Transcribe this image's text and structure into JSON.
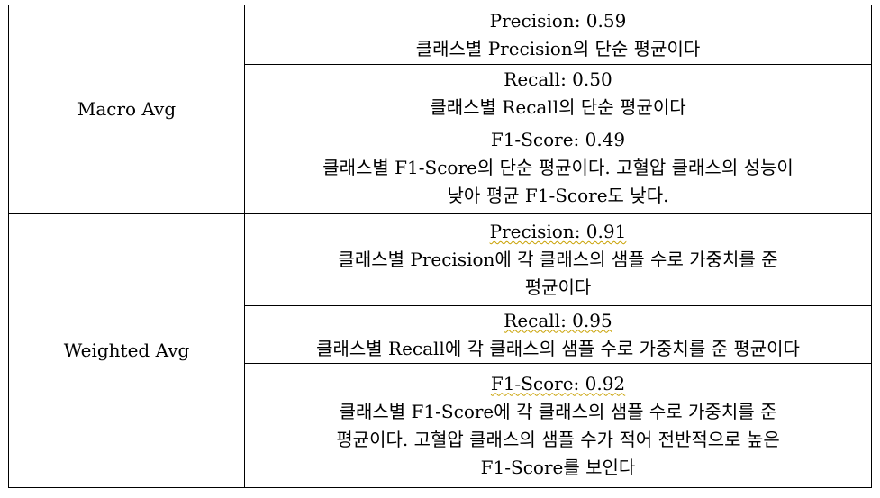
{
  "groups": [
    {
      "label": "Macro Avg",
      "metrics": [
        {
          "title": "Precision: 0.59",
          "lines": [
            "클래스별 Precision의 단순 평균이다"
          ]
        },
        {
          "title": "Recall: 0.50",
          "lines": [
            "클래스별 Recall의 단순 평균이다"
          ]
        },
        {
          "title": "F1-Score: 0.49",
          "lines": [
            "클래스별 F1-Score의 단순 평균이다. 고혈압 클래스의 성능이",
            "낮아 평균 F1-Score도 낮다."
          ]
        }
      ]
    },
    {
      "label": "Weighted Avg",
      "metrics": [
        {
          "title": "Precision: 0.91",
          "lines": [
            "클래스별 Precision에 각 클래스의 샘플 수로 가중치를 준",
            "평균이다"
          ]
        },
        {
          "title": "Recall: 0.95",
          "lines": [
            "클래스별 Recall에 각 클래스의 샘플 수로 가중치를 준 평균이다"
          ]
        },
        {
          "title": "F1-Score: 0.92",
          "lines": [
            "클래스별 F1-Score에 각 클래스의 샘플 수로 가중치를 준",
            "평균이다. 고혈압 클래스의 샘플 수가 적어 전반적으로 높은",
            "F1-Score를 보인다"
          ]
        }
      ]
    }
  ]
}
